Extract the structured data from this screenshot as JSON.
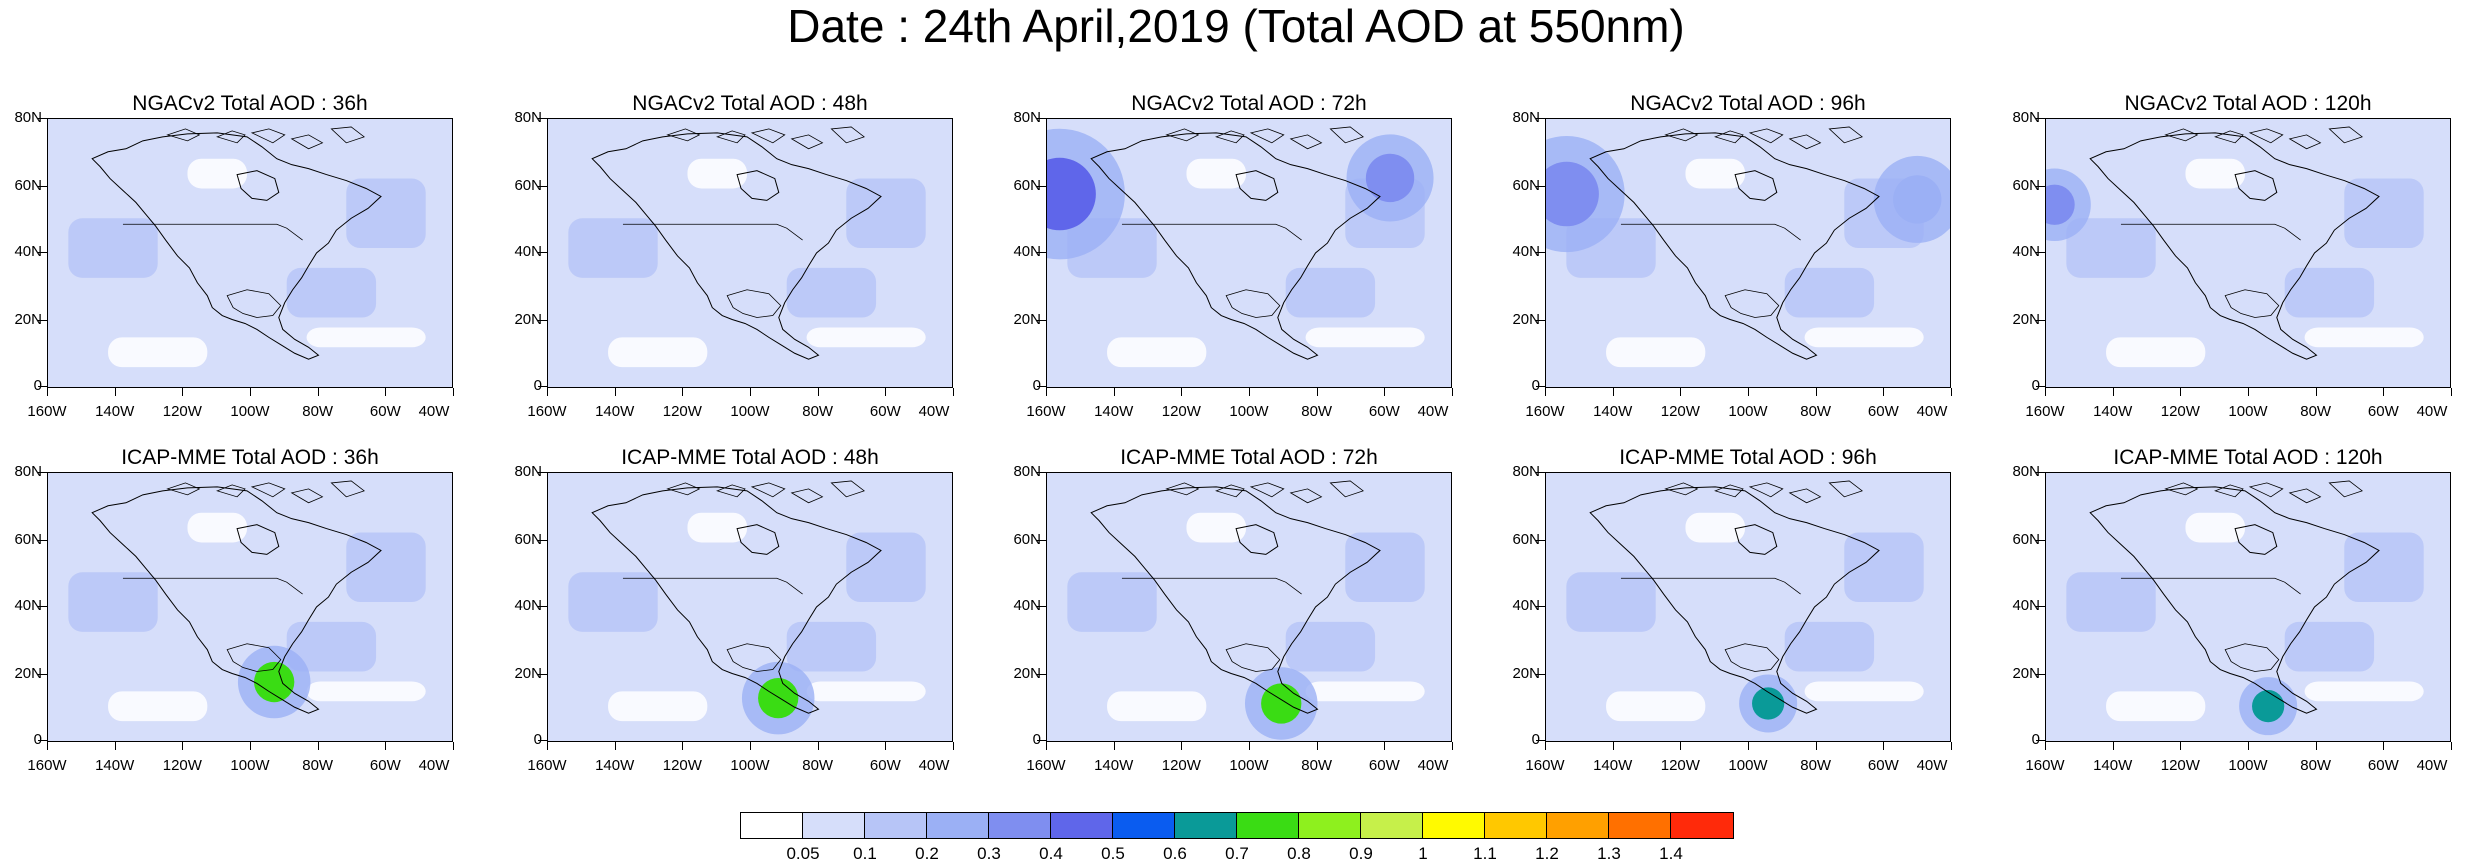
{
  "title": "Date : 24th April,2019 (Total AOD at 550nm)",
  "panels": [
    {
      "title": "NGACv2 Total AOD : 36h",
      "model": "NGACv2",
      "lead": "36h"
    },
    {
      "title": "NGACv2 Total AOD : 48h",
      "model": "NGACv2",
      "lead": "48h"
    },
    {
      "title": "NGACv2 Total AOD : 72h",
      "model": "NGACv2",
      "lead": "72h"
    },
    {
      "title": "NGACv2 Total AOD : 96h",
      "model": "NGACv2",
      "lead": "96h"
    },
    {
      "title": "NGACv2 Total AOD : 120h",
      "model": "NGACv2",
      "lead": "120h"
    },
    {
      "title": "ICAP-MME Total AOD : 36h",
      "model": "ICAP-MME",
      "lead": "36h"
    },
    {
      "title": "ICAP-MME Total AOD : 48h",
      "model": "ICAP-MME",
      "lead": "48h"
    },
    {
      "title": "ICAP-MME Total AOD : 72h",
      "model": "ICAP-MME",
      "lead": "72h"
    },
    {
      "title": "ICAP-MME Total AOD : 96h",
      "model": "ICAP-MME",
      "lead": "96h"
    },
    {
      "title": "ICAP-MME Total AOD : 120h",
      "model": "ICAP-MME",
      "lead": "120h"
    }
  ],
  "axes": {
    "lat_labels": [
      "80N",
      "60N",
      "40N",
      "20N",
      "0"
    ],
    "lon_labels": [
      "160W",
      "140W",
      "120W",
      "100W",
      "80W",
      "60W",
      "40W"
    ]
  },
  "colorbar": {
    "labels": [
      "0.05",
      "0.1",
      "0.2",
      "0.3",
      "0.4",
      "0.5",
      "0.6",
      "0.7",
      "0.8",
      "0.9",
      "1",
      "1.1",
      "1.2",
      "1.3",
      "1.4"
    ],
    "colors": [
      "#ffffff",
      "#d6defa",
      "#b7c5f7",
      "#9bb0f5",
      "#7f8ef0",
      "#5f66ea",
      "#0a5cf0",
      "#0a9a98",
      "#3adc14",
      "#8ef01e",
      "#c6f04a",
      "#fffa00",
      "#ffc800",
      "#ffa000",
      "#ff7000",
      "#ff2a0a"
    ]
  }
}
